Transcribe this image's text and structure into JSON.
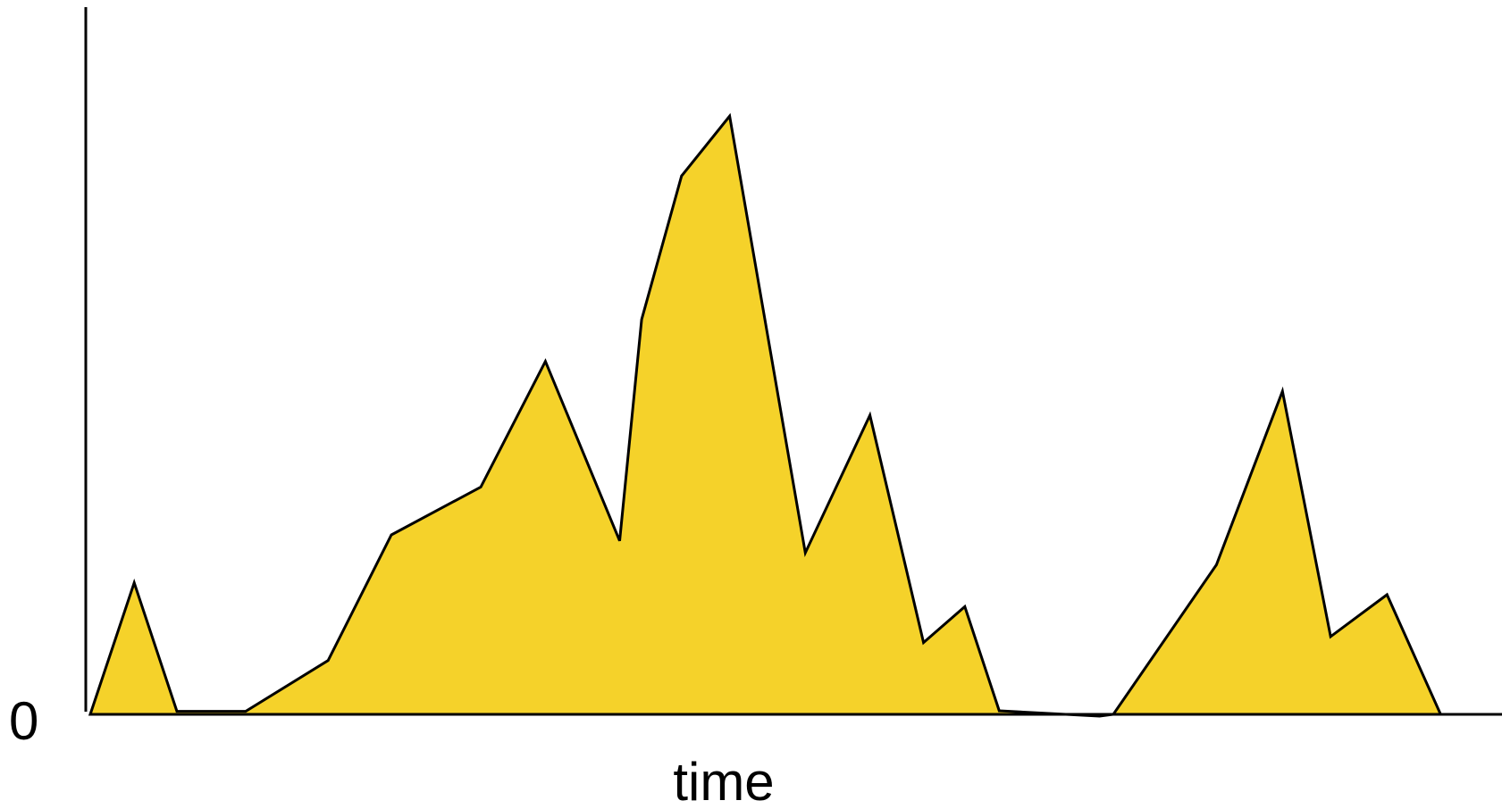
{
  "chart_data": {
    "type": "area",
    "title": "",
    "xlabel": "time",
    "ylabel": "",
    "y_tick_labels": [
      "0"
    ],
    "grid": false,
    "legend": "none",
    "xlim": [
      0,
      100
    ],
    "ylim": [
      0,
      100
    ],
    "fill_color": "#F5D22A",
    "line_color": "#000000",
    "series": [
      {
        "x": [
          0,
          3.2,
          6.3,
          11.3,
          17.3,
          21.9,
          28.4,
          33.1,
          38.5,
          40.1,
          43.0,
          46.5,
          52.0,
          56.7,
          60.6,
          63.6,
          66.1,
          73.4,
          74.4,
          81.9,
          86.7,
          90.2,
          94.3,
          98.2,
          100
        ],
        "y": [
          0,
          22,
          0.5,
          0.5,
          9,
          30,
          38,
          59,
          29,
          66,
          90,
          100,
          27,
          50,
          12,
          18,
          0.6,
          -0.3,
          0,
          25,
          54,
          13,
          20,
          0,
          0
        ]
      }
    ]
  }
}
